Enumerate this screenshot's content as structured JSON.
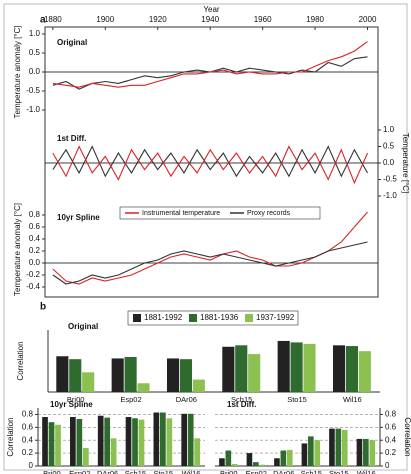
{
  "panel_labels": [
    "a",
    "b"
  ],
  "chart_data": [
    {
      "type": "line",
      "title": "Original",
      "xlabel": "Year",
      "ylabel": "Temperature anomaly [°C]",
      "x": [
        1880,
        1885,
        1890,
        1895,
        1900,
        1905,
        1910,
        1915,
        1920,
        1925,
        1930,
        1935,
        1940,
        1945,
        1950,
        1955,
        1960,
        1965,
        1970,
        1975,
        1980,
        1985,
        1990,
        1995,
        2000
      ],
      "xlim": [
        1877,
        2004
      ],
      "xticks": [
        1880,
        1900,
        1920,
        1940,
        1960,
        1980,
        2000
      ],
      "ylim": [
        -1,
        1
      ],
      "yticks": [
        {
          "value": -1,
          "label": "-1.0"
        },
        -0.5,
        {
          "value": 0,
          "label": "0.0"
        },
        0.5,
        {
          "value": 1,
          "label": "1.0"
        }
      ],
      "series": [
        {
          "color": "#333333",
          "values": [
            -0.35,
            -0.25,
            -0.45,
            -0.3,
            -0.25,
            -0.3,
            -0.2,
            -0.1,
            -0.15,
            -0.1,
            0.0,
            0.05,
            0.0,
            0.1,
            0.0,
            0.1,
            0.05,
            0.0,
            -0.05,
            0.05,
            0.0,
            0.25,
            0.15,
            0.35,
            0.4
          ]
        },
        {
          "color": "#d9232b",
          "values": [
            -0.3,
            -0.35,
            -0.4,
            -0.3,
            -0.35,
            -0.4,
            -0.35,
            -0.35,
            -0.25,
            -0.15,
            -0.05,
            -0.05,
            0.0,
            0.05,
            -0.05,
            0.0,
            -0.05,
            -0.05,
            0.0,
            0.0,
            0.15,
            0.3,
            0.4,
            0.55,
            0.8
          ]
        }
      ]
    },
    {
      "type": "line",
      "title": "1st Diff.",
      "ylabel": "Temperature [°C]",
      "x": [
        1880,
        1885,
        1890,
        1895,
        1900,
        1905,
        1910,
        1915,
        1920,
        1925,
        1930,
        1935,
        1940,
        1945,
        1950,
        1955,
        1960,
        1965,
        1970,
        1975,
        1980,
        1985,
        1990,
        1995,
        2000
      ],
      "xlim": [
        1877,
        2004
      ],
      "ylim": [
        -1,
        1
      ],
      "yticks": [
        {
          "value": -1,
          "label": "-1.0"
        },
        -0.5,
        {
          "value": 0,
          "label": "0.0"
        },
        0.5,
        {
          "value": 1,
          "label": "1.0"
        }
      ],
      "series": [
        {
          "color": "#333333",
          "values": [
            -0.2,
            0.4,
            -0.3,
            0.5,
            -0.4,
            0.3,
            -0.3,
            0.4,
            -0.2,
            0.3,
            -0.3,
            0.4,
            -0.2,
            0.3,
            -0.4,
            0.2,
            -0.3,
            0.3,
            -0.4,
            0.4,
            -0.3,
            0.5,
            -0.4,
            0.4,
            -0.3
          ]
        },
        {
          "color": "#d9232b",
          "values": [
            0.3,
            -0.4,
            0.5,
            -0.3,
            0.2,
            -0.5,
            0.4,
            -0.2,
            0.3,
            -0.4,
            0.2,
            -0.3,
            0.4,
            -0.2,
            0.3,
            -0.3,
            0.2,
            -0.4,
            0.5,
            -0.2,
            0.3,
            -0.5,
            0.4,
            -0.6,
            0.3
          ]
        }
      ]
    },
    {
      "type": "line",
      "title": "10yr Spline",
      "ylabel": "Temperature anomaly [°C]",
      "x": [
        1880,
        1885,
        1890,
        1895,
        1900,
        1905,
        1910,
        1915,
        1920,
        1925,
        1930,
        1935,
        1940,
        1945,
        1950,
        1955,
        1960,
        1965,
        1970,
        1975,
        1980,
        1985,
        1990,
        1995,
        2000
      ],
      "xlim": [
        1877,
        2004
      ],
      "ylim": [
        -0.45,
        0.9
      ],
      "yticks": [
        -0.4,
        -0.2,
        {
          "value": 0,
          "label": "0.0"
        },
        0.2,
        0.4,
        0.6,
        0.8
      ],
      "series": [
        {
          "name": "Instrumental temperature",
          "color": "#d9232b",
          "values": [
            -0.1,
            -0.3,
            -0.35,
            -0.25,
            -0.3,
            -0.25,
            -0.2,
            -0.1,
            0.0,
            0.1,
            0.15,
            0.1,
            0.05,
            0.15,
            0.2,
            0.1,
            0.05,
            -0.05,
            -0.05,
            0.0,
            0.1,
            0.2,
            0.35,
            0.6,
            0.85
          ]
        },
        {
          "name": "Proxy records",
          "color": "#333333",
          "values": [
            -0.2,
            -0.35,
            -0.3,
            -0.2,
            -0.25,
            -0.2,
            -0.1,
            0.0,
            0.05,
            0.15,
            0.2,
            0.15,
            0.1,
            0.15,
            0.1,
            0.05,
            0.0,
            -0.05,
            0.0,
            0.05,
            0.1,
            0.2,
            0.25,
            0.3,
            0.35
          ]
        }
      ]
    },
    {
      "type": "bar",
      "title": "Original",
      "ylabel": "Correlation",
      "categories": [
        "Bri00",
        "Esp02",
        "DAr06",
        "Sch15",
        "Sto15",
        "Wil16"
      ],
      "ylim": [
        0,
        0.85
      ],
      "series": [
        {
          "name": "1881-1992",
          "color": "#222222",
          "values": [
            0.49,
            0.46,
            0.46,
            0.62,
            0.7,
            0.64
          ]
        },
        {
          "name": "1881-1936",
          "color": "#2f6b2f",
          "values": [
            0.45,
            0.48,
            0.45,
            0.64,
            0.68,
            0.63
          ]
        },
        {
          "name": "1937-1992",
          "color": "#8cc152",
          "values": [
            0.27,
            0.12,
            0.17,
            0.52,
            0.66,
            0.56
          ]
        }
      ]
    },
    {
      "type": "bar",
      "title": "10yr Spline",
      "ylabel": "Correlation",
      "categories": [
        "Bri00",
        "Esp02",
        "DAr06",
        "Sch15",
        "Sto15",
        "Wil16"
      ],
      "ylim": [
        0,
        0.9
      ],
      "yticks": [
        0,
        0.2,
        0.4,
        0.6,
        0.8
      ],
      "series": [
        {
          "color": "#222222",
          "values": [
            0.76,
            0.76,
            0.78,
            0.76,
            0.83,
            0.81
          ]
        },
        {
          "color": "#2f6b2f",
          "values": [
            0.68,
            0.73,
            0.75,
            0.74,
            0.83,
            0.81
          ]
        },
        {
          "color": "#8cc152",
          "values": [
            0.64,
            0.28,
            0.43,
            0.72,
            0.74,
            0.43
          ]
        }
      ]
    },
    {
      "type": "bar",
      "title": "1st Diff.",
      "ylabel": "Correlation",
      "categories": [
        "Bri00",
        "Esp02",
        "DAr06",
        "Sch15",
        "Sto15",
        "Wil16"
      ],
      "ylim": [
        0,
        0.9
      ],
      "yticks": [
        0,
        0.2,
        0.4,
        0.6,
        0.8
      ],
      "series": [
        {
          "color": "#222222",
          "values": [
            0.12,
            0.2,
            0.12,
            0.35,
            0.58,
            0.42
          ]
        },
        {
          "color": "#2f6b2f",
          "values": [
            0.24,
            0.06,
            0.24,
            0.46,
            0.58,
            0.42
          ]
        },
        {
          "color": "#8cc152",
          "values": [
            0.03,
            0.02,
            0.25,
            0.4,
            0.56,
            0.4
          ]
        }
      ]
    }
  ]
}
